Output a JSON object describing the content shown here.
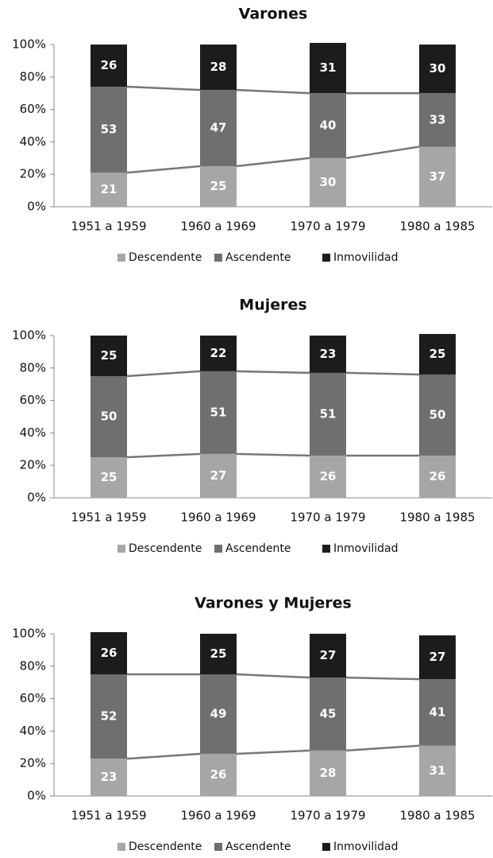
{
  "chart_data": [
    {
      "type": "stacked_bar",
      "title": "Varones",
      "categories": [
        "1951 a 1959",
        "1960 a 1969",
        "1970 a 1979",
        "1980 a 1985"
      ],
      "series": [
        {
          "name": "Descendente",
          "color": "#a6a6a6",
          "values": [
            21,
            25,
            30,
            37
          ]
        },
        {
          "name": "Ascendente",
          "color": "#6f6f6f",
          "values": [
            53,
            47,
            40,
            33
          ]
        },
        {
          "name": "Inmovilidad",
          "color": "#1c1c1c",
          "values": [
            26,
            28,
            31,
            30
          ]
        }
      ],
      "ylim": [
        0,
        100
      ],
      "yticks": [
        {
          "value": 0,
          "label": "0%"
        },
        {
          "value": 20,
          "label": "20%"
        },
        {
          "value": 40,
          "label": "40%"
        },
        {
          "value": 60,
          "label": "60%"
        },
        {
          "value": 80,
          "label": "80%"
        },
        {
          "value": 100,
          "label": "100%"
        }
      ],
      "legend": "bottom"
    },
    {
      "type": "stacked_bar",
      "title": "Mujeres",
      "categories": [
        "1951 a 1959",
        "1960 a 1969",
        "1970 a 1979",
        "1980 a 1985"
      ],
      "series": [
        {
          "name": "Descendente",
          "color": "#a6a6a6",
          "values": [
            25,
            27,
            26,
            26
          ]
        },
        {
          "name": "Ascendente",
          "color": "#6f6f6f",
          "values": [
            50,
            51,
            51,
            50
          ]
        },
        {
          "name": "Inmovilidad",
          "color": "#1c1c1c",
          "values": [
            25,
            22,
            23,
            25
          ]
        }
      ],
      "ylim": [
        0,
        100
      ],
      "yticks": [
        {
          "value": 0,
          "label": "0%"
        },
        {
          "value": 20,
          "label": "20%"
        },
        {
          "value": 40,
          "label": "40%"
        },
        {
          "value": 60,
          "label": "60%"
        },
        {
          "value": 80,
          "label": "80%"
        },
        {
          "value": 100,
          "label": "100%"
        }
      ],
      "legend": "bottom"
    },
    {
      "type": "stacked_bar",
      "title": "Varones y Mujeres",
      "categories": [
        "1951 a 1959",
        "1960 a 1969",
        "1970 a 1979",
        "1980 a 1985"
      ],
      "series": [
        {
          "name": "Descendente",
          "color": "#a6a6a6",
          "values": [
            23,
            26,
            28,
            31
          ]
        },
        {
          "name": "Ascendente",
          "color": "#6f6f6f",
          "values": [
            52,
            49,
            45,
            41
          ]
        },
        {
          "name": "Inmovilidad",
          "color": "#1c1c1c",
          "values": [
            26,
            25,
            27,
            27
          ]
        }
      ],
      "ylim": [
        0,
        100
      ],
      "yticks": [
        {
          "value": 0,
          "label": "0%"
        },
        {
          "value": 20,
          "label": "20%"
        },
        {
          "value": 40,
          "label": "40%"
        },
        {
          "value": 60,
          "label": "60%"
        },
        {
          "value": 80,
          "label": "80%"
        },
        {
          "value": 100,
          "label": "100%"
        }
      ],
      "legend": "bottom"
    }
  ]
}
